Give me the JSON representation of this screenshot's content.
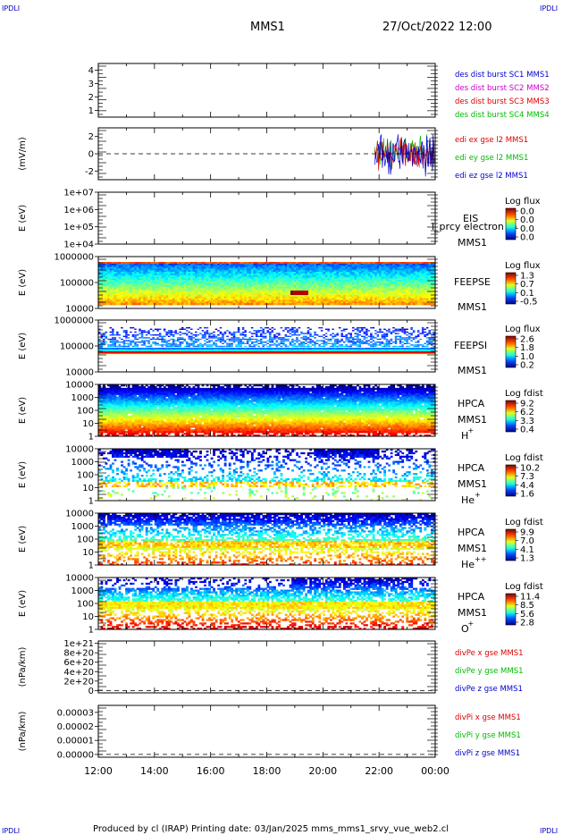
{
  "header": {
    "corner_tl": "IPDLI",
    "corner_tr": "IPDLI",
    "corner_bl": "IPDLI",
    "corner_br": "IPDLI",
    "spacecraft": "MMS1",
    "datetime": "27/Oct/2022 12:00"
  },
  "footer": {
    "text": "Produced by cl (IRAP)   Printing date: 03/Jan/2025   mms_mms1_srvy_vue_web2.cl"
  },
  "colors": {
    "blue": "#0000cc",
    "magenta": "#cc00cc",
    "red": "#dd0000",
    "green": "#00bb00"
  },
  "chart_data": [
    {
      "type": "line",
      "id": "des",
      "ylabel": "",
      "yticks": [
        "1",
        "2",
        "3",
        "4"
      ],
      "ylim": [
        0.5,
        4.5
      ],
      "legend": [
        {
          "label": "des dist burst SC1 MMS1",
          "color": "#0000cc"
        },
        {
          "label": "des dist burst SC2 MMS2",
          "color": "#cc00cc"
        },
        {
          "label": "des dist burst SC3 MMS3",
          "color": "#dd0000"
        },
        {
          "label": "des dist burst SC4 MMS4",
          "color": "#00bb00"
        }
      ]
    },
    {
      "type": "line",
      "id": "edi",
      "ylabel": "(mV/m)",
      "yticks": [
        "2",
        "0",
        "-2"
      ],
      "ylim": [
        -3,
        3
      ],
      "zero_line": true,
      "data_start_hour": 21.85,
      "legend": [
        {
          "label": "edi ex gse l2 MMS1",
          "color": "#dd0000"
        },
        {
          "label": "edi ey gse l2 MMS1",
          "color": "#00bb00"
        },
        {
          "label": "edi ez gse l2 MMS1",
          "color": "#0000cc"
        }
      ]
    },
    {
      "type": "heatmap",
      "id": "eis",
      "ylabel": "E (eV)",
      "yticks": [
        "1e+07",
        "1e+06",
        "1e+05",
        "1e+04"
      ],
      "instrument": "EIS",
      "overlay": "l_prcy electron to",
      "sc": "MMS1",
      "colorbar_title": "Log flux",
      "colorbar_ticks": [
        "0.0",
        "0.0",
        "0.0",
        "0.0"
      ]
    },
    {
      "type": "heatmap",
      "id": "feepse",
      "ylabel": "E (eV)",
      "yticks": [
        "1000000",
        "100000",
        "10000"
      ],
      "instrument": "FEEPSE",
      "sc": "MMS1",
      "colorbar_title": "Log flux",
      "colorbar_ticks": [
        "1.3",
        "0.7",
        "0.1",
        "-0.5"
      ]
    },
    {
      "type": "heatmap",
      "id": "feepsi",
      "ylabel": "E (eV)",
      "yticks": [
        "1000000",
        "100000",
        "10000"
      ],
      "instrument": "FEEPSI",
      "sc": "MMS1",
      "colorbar_title": "Log flux",
      "colorbar_ticks": [
        "2.6",
        "1.8",
        "1.0",
        "0.2"
      ]
    },
    {
      "type": "heatmap",
      "id": "hpca_h",
      "ylabel": "E (eV)",
      "yticks": [
        "10000",
        "1000",
        "100",
        "10",
        "1"
      ],
      "instrument": "HPCA",
      "sc": "MMS1",
      "species": "H",
      "charge": "+",
      "colorbar_title": "Log fdist",
      "colorbar_ticks": [
        "9.2",
        "6.2",
        "3.3",
        "0.4"
      ]
    },
    {
      "type": "heatmap",
      "id": "hpca_he",
      "ylabel": "E (eV)",
      "yticks": [
        "10000",
        "1000",
        "100",
        "10",
        "1"
      ],
      "instrument": "HPCA",
      "sc": "MMS1",
      "species": "He",
      "charge": "+",
      "colorbar_title": "Log fdist",
      "colorbar_ticks": [
        "10.2",
        "7.3",
        "4.4",
        "1.6"
      ]
    },
    {
      "type": "heatmap",
      "id": "hpca_hepp",
      "ylabel": "E (eV)",
      "yticks": [
        "10000",
        "1000",
        "100",
        "10",
        "1"
      ],
      "instrument": "HPCA",
      "sc": "MMS1",
      "species": "He",
      "charge": "++",
      "colorbar_title": "Log fdist",
      "colorbar_ticks": [
        "9.9",
        "7.0",
        "4.1",
        "1.3"
      ]
    },
    {
      "type": "heatmap",
      "id": "hpca_o",
      "ylabel": "E (eV)",
      "yticks": [
        "10000",
        "1000",
        "100",
        "10",
        "1"
      ],
      "instrument": "HPCA",
      "sc": "MMS1",
      "species": "O",
      "charge": "+",
      "colorbar_title": "Log fdist",
      "colorbar_ticks": [
        "11.4",
        "8.5",
        "5.6",
        "2.8"
      ]
    },
    {
      "type": "line",
      "id": "divpe",
      "ylabel": "(nPa/km)",
      "yticks": [
        "1e+21",
        "8e+20",
        "6e+20",
        "4e+20",
        "2e+20",
        "0"
      ],
      "ylim": [
        -5e+19,
        1.05e+21
      ],
      "zero_line": true,
      "legend": [
        {
          "label": "divPe x gse MMS1",
          "color": "#dd0000"
        },
        {
          "label": "divPe y gse MMS1",
          "color": "#00bb00"
        },
        {
          "label": "divPe z gse MMS1",
          "color": "#0000cc"
        }
      ]
    },
    {
      "type": "line",
      "id": "divpi",
      "ylabel": "(nPa/km)",
      "yticks": [
        "0.00003",
        "0.00002",
        "0.00001",
        "0.00000"
      ],
      "ylim": [
        -2e-06,
        3.5e-05
      ],
      "zero_line": true,
      "legend": [
        {
          "label": "divPi x gse MMS1",
          "color": "#dd0000"
        },
        {
          "label": "divPi y gse MMS1",
          "color": "#00bb00"
        },
        {
          "label": "divPi z gse MMS1",
          "color": "#0000cc"
        }
      ]
    }
  ],
  "xaxis": {
    "range_hours": [
      12,
      24
    ],
    "ticks": [
      "12:00",
      "14:00",
      "16:00",
      "18:00",
      "20:00",
      "22:00",
      "00:00"
    ]
  }
}
